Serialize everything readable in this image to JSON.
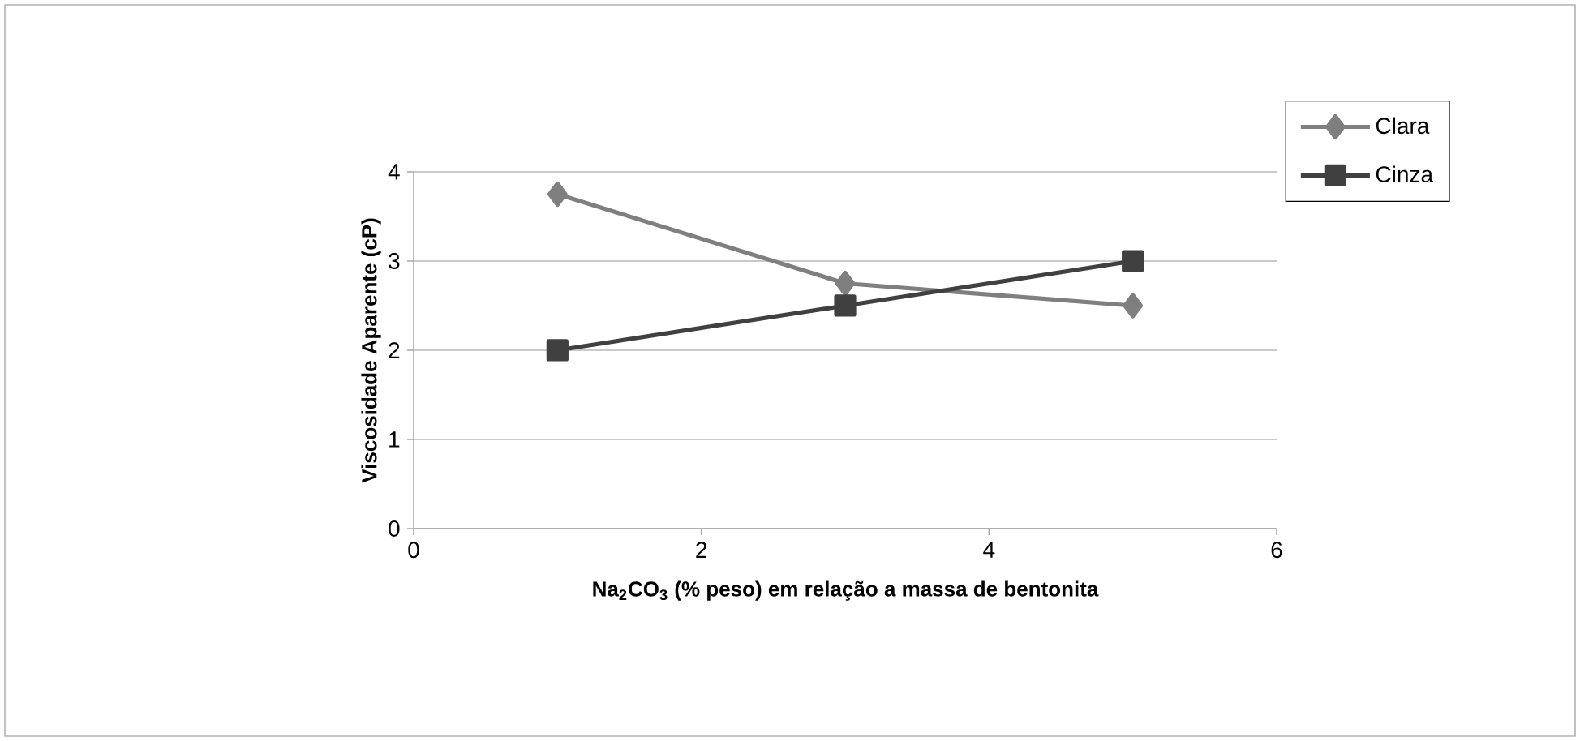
{
  "chart_data": {
    "type": "line",
    "xlabel": "Na$_{2}$CO$_{3}$ (% peso) em relação a massa de bentonita",
    "ylabel": "Viscosidade Aparente (cP)",
    "x": [
      1,
      3,
      5
    ],
    "series": [
      {
        "name": "Clara",
        "color": "#7f7f7f",
        "marker": "diamond",
        "values": [
          3.75,
          2.75,
          2.5
        ]
      },
      {
        "name": "Cinza",
        "color": "#404040",
        "marker": "square",
        "values": [
          2,
          2.5,
          3
        ]
      }
    ],
    "xlim": [
      0,
      6
    ],
    "xticks": [
      0,
      2,
      4,
      6
    ],
    "ylim": [
      0,
      4
    ],
    "yticks": [
      0,
      1,
      2,
      3,
      4
    ],
    "grid": "y",
    "legend": "top right",
    "line_style": "solid"
  }
}
